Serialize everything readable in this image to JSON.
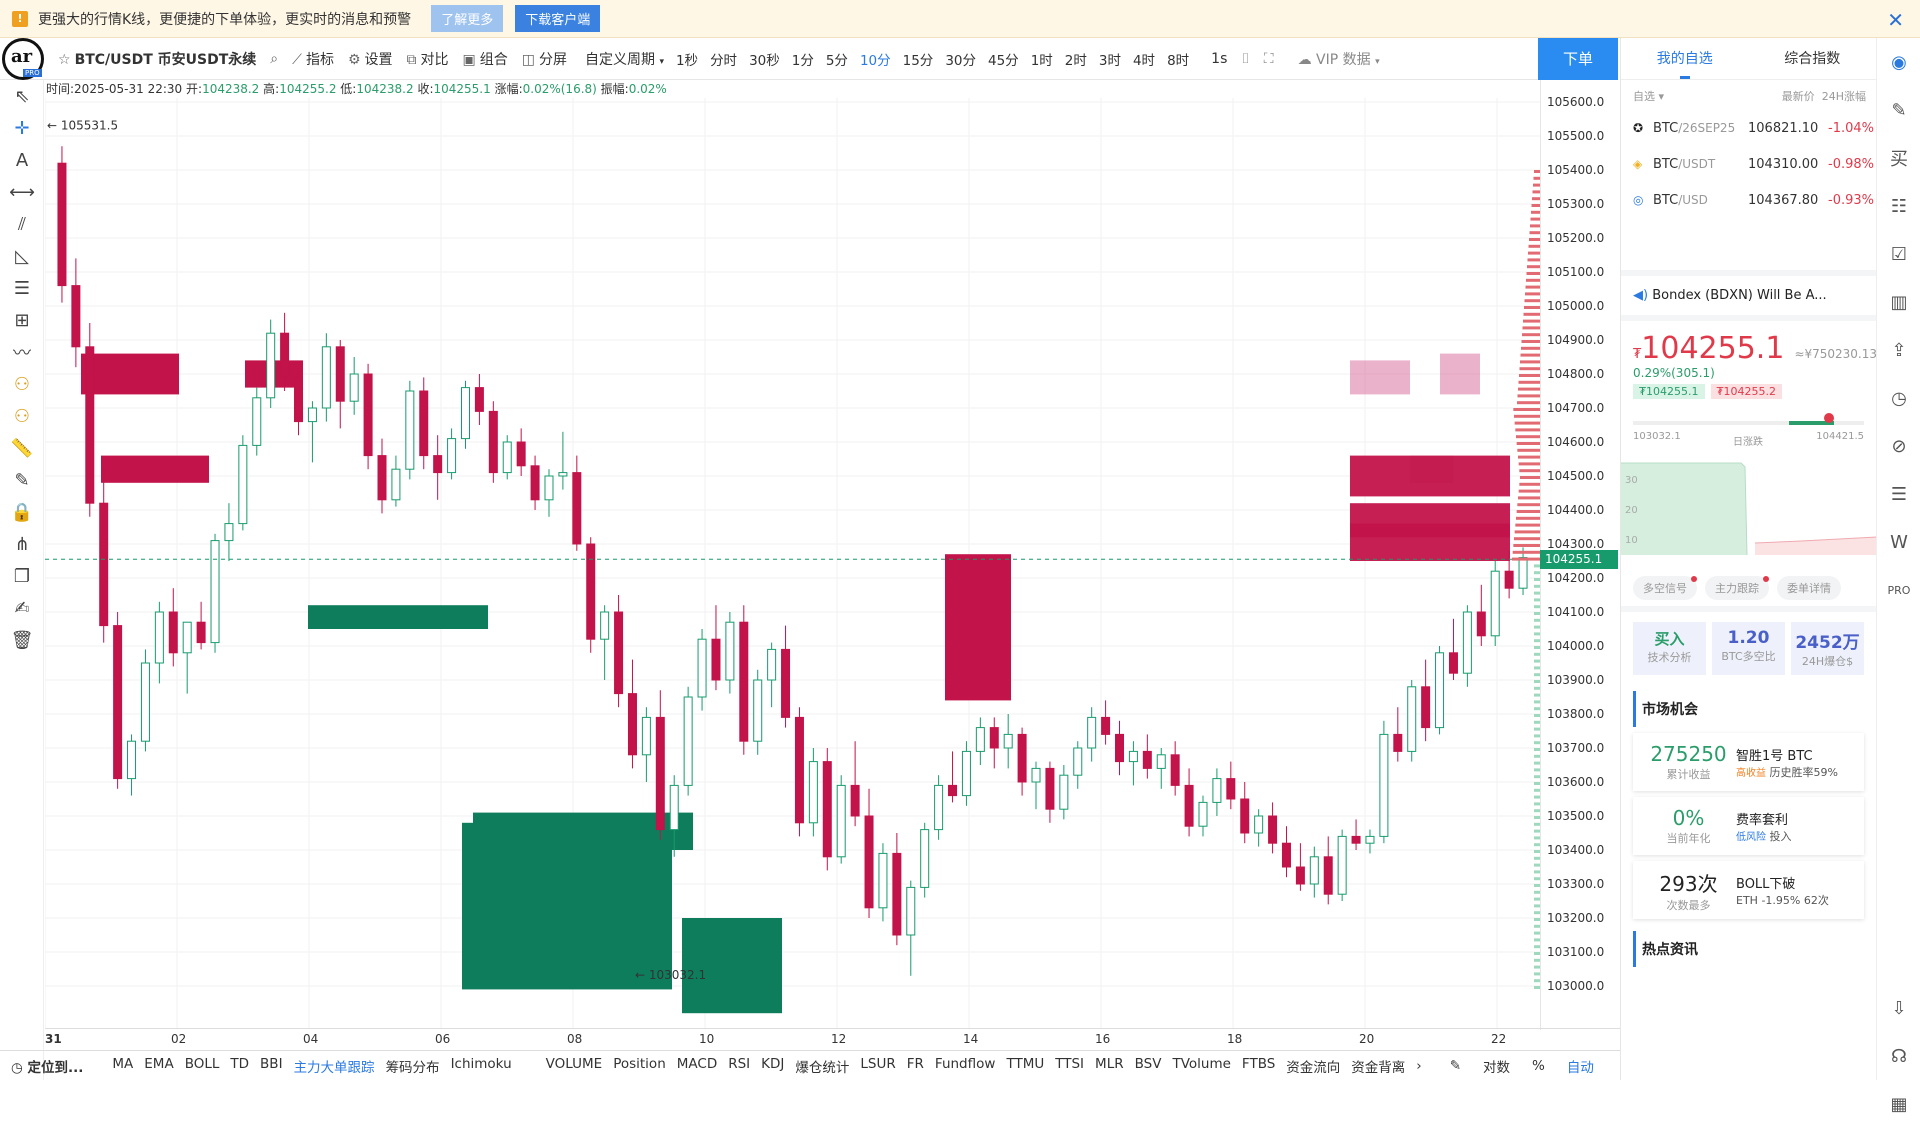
{
  "banner": {
    "text": "更强大的行情K线，更便捷的下单体验，更实时的消息和预警",
    "learn_more": "了解更多",
    "download": "下载客户端"
  },
  "toolbar": {
    "symbol": "BTC/USDT 币安USDT永续",
    "indicators": "指标",
    "settings": "设置",
    "compare": "对比",
    "combine": "组合",
    "split": "分屏",
    "custom_period": "自定义周期",
    "periods": [
      "1秒",
      "分时",
      "30秒",
      "1分",
      "5分",
      "10分",
      "15分",
      "30分",
      "45分",
      "1时",
      "2时",
      "3时",
      "4时",
      "8时"
    ],
    "active_period": "10分",
    "interval_1s": "1s",
    "vip_data": "VIP 数据",
    "order": "下单"
  },
  "info": {
    "time": "时间:2025-05-31 22:30",
    "open_label": "开:",
    "open": "104238.2",
    "high_label": "高:",
    "high": "104255.2",
    "low_label": "低:",
    "low": "104238.2",
    "close_label": "收:",
    "close": "104255.1",
    "change_label": "涨幅:",
    "change": "0.02%(16.8)",
    "amp_label": "振幅:",
    "amp": "0.02%"
  },
  "chart_data": {
    "type": "candlestick",
    "price_ticks": [
      "105600.0",
      "105500.0",
      "105400.0",
      "105300.0",
      "105200.0",
      "105100.0",
      "105000.0",
      "104900.0",
      "104800.0",
      "104700.0",
      "104600.0",
      "104500.0",
      "104400.0",
      "104300.0",
      "104200.0",
      "104100.0",
      "104000.0",
      "103900.0",
      "103800.0",
      "103700.0",
      "103600.0",
      "103500.0",
      "103400.0",
      "103300.0",
      "103200.0",
      "103100.0",
      "103000.0"
    ],
    "ylim": [
      102920,
      105680
    ],
    "date_ticks": [
      "31",
      "02",
      "04",
      "06",
      "08",
      "10",
      "12",
      "14",
      "16",
      "18",
      "20",
      "22"
    ],
    "high_marker": "105531.5",
    "low_marker": "103032.1",
    "current_price": "104255.1",
    "candles": [
      [
        105420,
        105470,
        105010,
        105060
      ],
      [
        105060,
        105140,
        104820,
        104880
      ],
      [
        104880,
        104950,
        104380,
        104420
      ],
      [
        104420,
        104520,
        104010,
        104060
      ],
      [
        104060,
        104100,
        103580,
        103610
      ],
      [
        103610,
        103740,
        103560,
        103720
      ],
      [
        103720,
        103990,
        103690,
        103950
      ],
      [
        103950,
        104130,
        103890,
        104100
      ],
      [
        104100,
        104170,
        103940,
        103980
      ],
      [
        103980,
        104050,
        103860,
        104070
      ],
      [
        104070,
        104130,
        103990,
        104010
      ],
      [
        104010,
        104330,
        103980,
        104310
      ],
      [
        104310,
        104420,
        104250,
        104360
      ],
      [
        104360,
        104620,
        104340,
        104590
      ],
      [
        104590,
        104760,
        104560,
        104730
      ],
      [
        104730,
        104960,
        104700,
        104920
      ],
      [
        104920,
        104980,
        104750,
        104790
      ],
      [
        104790,
        104830,
        104620,
        104660
      ],
      [
        104660,
        104720,
        104540,
        104700
      ],
      [
        104700,
        104920,
        104660,
        104880
      ],
      [
        104880,
        104900,
        104640,
        104720
      ],
      [
        104720,
        104850,
        104680,
        104800
      ],
      [
        104800,
        104830,
        104520,
        104560
      ],
      [
        104560,
        104610,
        104390,
        104430
      ],
      [
        104430,
        104560,
        104410,
        104520
      ],
      [
        104520,
        104780,
        104490,
        104750
      ],
      [
        104750,
        104790,
        104520,
        104560
      ],
      [
        104560,
        104620,
        104430,
        104510
      ],
      [
        104510,
        104640,
        104490,
        104610
      ],
      [
        104610,
        104780,
        104580,
        104760
      ],
      [
        104760,
        104800,
        104650,
        104690
      ],
      [
        104690,
        104720,
        104480,
        104510
      ],
      [
        104510,
        104620,
        104490,
        104600
      ],
      [
        104600,
        104640,
        104500,
        104530
      ],
      [
        104530,
        104560,
        104400,
        104430
      ],
      [
        104430,
        104520,
        104380,
        104500
      ],
      [
        104500,
        104630,
        104460,
        104510
      ],
      [
        104510,
        104560,
        104280,
        104300
      ],
      [
        104300,
        104320,
        103980,
        104020
      ],
      [
        104020,
        104120,
        103900,
        104100
      ],
      [
        104100,
        104150,
        103820,
        103860
      ],
      [
        103860,
        103960,
        103640,
        103680
      ],
      [
        103680,
        103820,
        103600,
        103790
      ],
      [
        103790,
        103870,
        103430,
        103460
      ],
      [
        103460,
        103620,
        103380,
        103590
      ],
      [
        103590,
        103880,
        103560,
        103850
      ],
      [
        103850,
        104050,
        103810,
        104020
      ],
      [
        104020,
        104120,
        103870,
        103900
      ],
      [
        103900,
        104100,
        103860,
        104070
      ],
      [
        104070,
        104120,
        103680,
        103720
      ],
      [
        103720,
        103930,
        103680,
        103900
      ],
      [
        103900,
        104010,
        103820,
        103990
      ],
      [
        103990,
        104060,
        103760,
        103790
      ],
      [
        103790,
        103820,
        103440,
        103480
      ],
      [
        103480,
        103700,
        103440,
        103660
      ],
      [
        103660,
        103700,
        103340,
        103380
      ],
      [
        103380,
        103620,
        103360,
        103590
      ],
      [
        103590,
        103720,
        103470,
        103500
      ],
      [
        103500,
        103580,
        103200,
        103230
      ],
      [
        103230,
        103420,
        103190,
        103390
      ],
      [
        103390,
        103450,
        103120,
        103150
      ],
      [
        103150,
        103310,
        103030,
        103290
      ],
      [
        103290,
        103480,
        103260,
        103460
      ],
      [
        103460,
        103620,
        103430,
        103590
      ],
      [
        103590,
        103690,
        103540,
        103560
      ],
      [
        103560,
        103720,
        103530,
        103690
      ],
      [
        103690,
        103790,
        103650,
        103760
      ],
      [
        103760,
        103790,
        103640,
        103700
      ],
      [
        103700,
        103800,
        103640,
        103740
      ],
      [
        103740,
        103760,
        103560,
        103600
      ],
      [
        103600,
        103660,
        103520,
        103640
      ],
      [
        103640,
        103660,
        103480,
        103520
      ],
      [
        103520,
        103650,
        103490,
        103620
      ],
      [
        103620,
        103720,
        103580,
        103700
      ],
      [
        103700,
        103820,
        103660,
        103790
      ],
      [
        103790,
        103840,
        103710,
        103740
      ],
      [
        103740,
        103780,
        103620,
        103660
      ],
      [
        103660,
        103720,
        103590,
        103690
      ],
      [
        103690,
        103740,
        103610,
        103640
      ],
      [
        103640,
        103700,
        103580,
        103680
      ],
      [
        103680,
        103720,
        103560,
        103590
      ],
      [
        103590,
        103640,
        103440,
        103470
      ],
      [
        103470,
        103560,
        103440,
        103540
      ],
      [
        103540,
        103640,
        103500,
        103610
      ],
      [
        103610,
        103660,
        103520,
        103550
      ],
      [
        103550,
        103600,
        103420,
        103450
      ],
      [
        103450,
        103520,
        103410,
        103500
      ],
      [
        103500,
        103540,
        103390,
        103420
      ],
      [
        103420,
        103470,
        103320,
        103350
      ],
      [
        103350,
        103420,
        103280,
        103300
      ],
      [
        103300,
        103410,
        103260,
        103380
      ],
      [
        103380,
        103440,
        103240,
        103270
      ],
      [
        103270,
        103460,
        103250,
        103440
      ],
      [
        103440,
        103490,
        103400,
        103420
      ],
      [
        103420,
        103460,
        103390,
        103440
      ],
      [
        103440,
        103780,
        103420,
        103740
      ],
      [
        103740,
        103820,
        103660,
        103690
      ],
      [
        103690,
        103900,
        103660,
        103880
      ],
      [
        103880,
        103960,
        103720,
        103760
      ],
      [
        103760,
        104000,
        103740,
        103980
      ],
      [
        103980,
        104080,
        103900,
        103920
      ],
      [
        103920,
        104120,
        103880,
        104100
      ],
      [
        104100,
        104180,
        104000,
        104030
      ],
      [
        104030,
        104250,
        104000,
        104220
      ],
      [
        104220,
        104280,
        104140,
        104170
      ],
      [
        104170,
        104290,
        104150,
        104260
      ]
    ],
    "buy_walls": [
      [
        104050,
        104120,
        390
      ],
      [
        103410,
        103510,
        540
      ],
      [
        102980,
        103420,
        840
      ],
      [
        102940,
        103210,
        860
      ]
    ],
    "sell_walls": [
      [
        104740,
        104860,
        120
      ],
      [
        104480,
        104560,
        140
      ],
      [
        104740,
        104840,
        240
      ],
      [
        104250,
        104360,
        1260
      ],
      [
        104320,
        104420,
        1260
      ],
      [
        104440,
        104560,
        1260
      ]
    ]
  },
  "bottom": {
    "locate": "定位到...",
    "items": [
      "MA",
      "EMA",
      "BOLL",
      "TD",
      "BBI",
      "主力大单跟踪",
      "筹码分布",
      "Ichimoku",
      "VOLUME",
      "Position",
      "MACD",
      "RSI",
      "KDJ",
      "爆仓统计",
      "LSUR",
      "FR",
      "Fundflow",
      "TTMU",
      "TTSI",
      "MLR",
      "BSV",
      "TVolume",
      "FTBS",
      "资金流向",
      "资金背离"
    ],
    "active_item": "主力大单跟踪",
    "right": [
      "对数",
      "%",
      "自动"
    ]
  },
  "rightpanel": {
    "tab_watch": "我的自选",
    "tab_index": "综合指数",
    "head_left": "自选",
    "head_price": "最新价",
    "head_change": "24H涨幅",
    "watch": [
      {
        "base": "BTC",
        "quote": "/26SEP25",
        "price": "106821.10",
        "change": "-1.04%"
      },
      {
        "base": "BTC",
        "quote": "/USDT",
        "price": "104310.00",
        "change": "-0.98%"
      },
      {
        "base": "BTC",
        "quote": "/USD",
        "price": "104367.80",
        "change": "-0.93%"
      }
    ],
    "news": "Bondex (BDXN) Will Be A...",
    "big_price": "104255.1",
    "cny": "≈¥750230.13",
    "pct": "0.29%(305.1)",
    "bid": "₮104255.1",
    "ask": "₮104255.2",
    "low24": "103032.1",
    "range_label": "日涨跌",
    "high24": "104421.5",
    "mini_chart_labels": [
      "30",
      "20",
      "10"
    ],
    "pills": [
      "多空信号",
      "主力跟踪",
      "委单详情"
    ],
    "stat1_v": "买入",
    "stat1_k": "技术分析",
    "stat2_v": "1.20",
    "stat2_k": "BTC多空比",
    "stat3_v": "2452万",
    "stat3_k": "24H爆仓$",
    "market_title": "市场机会",
    "cards": [
      {
        "n": "275250",
        "ns": "累计收益",
        "t": "智胜1号 BTC",
        "tag": "高收益",
        "s": "历史胜率59%"
      },
      {
        "n": "0%",
        "ns": "当前年化",
        "t": "费率套利",
        "tag": "低风险",
        "s": "投入"
      },
      {
        "n": "293次",
        "ns": "次数最多",
        "t": "BOLL下破",
        "tag": "",
        "s": "ETH -1.95% 62次"
      }
    ],
    "hot_title": "热点资讯"
  },
  "colors": {
    "up": "#179b6c",
    "down": "#c2134a",
    "sell_wall": "#c2134a",
    "buy_wall": "#0e7d5c",
    "accent": "#2a7ae2"
  }
}
